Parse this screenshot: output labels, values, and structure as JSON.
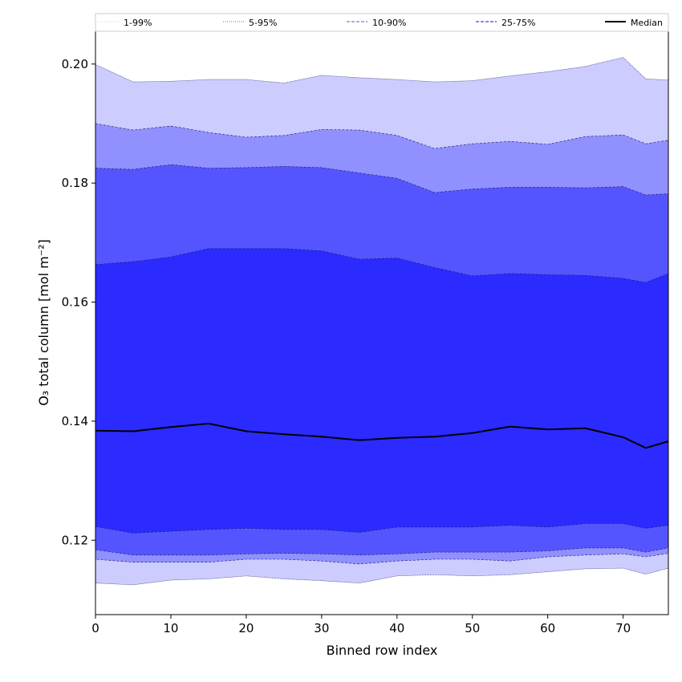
{
  "chart_data": {
    "type": "area",
    "xlabel": "Binned row index",
    "ylabel": "O₃ total column [mol m⁻²]",
    "xlim": [
      0,
      76
    ],
    "ylim": [
      0.1075,
      0.2055
    ],
    "x_ticks": [
      0,
      10,
      20,
      30,
      40,
      50,
      60,
      70
    ],
    "y_ticks": [
      0.12,
      0.14,
      0.16,
      0.18,
      0.2
    ],
    "x_ticks_text": [
      "0",
      "10",
      "20",
      "30",
      "40",
      "50",
      "60",
      "70"
    ],
    "y_ticks_text": [
      "0.12",
      "0.14",
      "0.16",
      "0.18",
      "0.20"
    ],
    "grid": false,
    "legend_placement": "top",
    "x": [
      0,
      5,
      10,
      15,
      20,
      25,
      30,
      35,
      40,
      45,
      50,
      55,
      60,
      65,
      70,
      73,
      76
    ],
    "bands": [
      {
        "name": "1-99%",
        "color": "#ffffff",
        "lower": [
          0.108,
          0.108,
          0.108,
          0.108,
          0.108,
          0.108,
          0.108,
          0.108,
          0.108,
          0.108,
          0.108,
          0.108,
          0.108,
          0.108,
          0.108,
          0.108,
          0.108
        ],
        "upper": [
          0.205,
          0.205,
          0.205,
          0.205,
          0.205,
          0.205,
          0.205,
          0.205,
          0.205,
          0.205,
          0.205,
          0.205,
          0.205,
          0.205,
          0.205,
          0.205,
          0.205
        ]
      },
      {
        "name": "5-95%",
        "color": "#ccccff",
        "lower": [
          0.1128,
          0.1125,
          0.1133,
          0.1135,
          0.114,
          0.1135,
          0.1132,
          0.1128,
          0.114,
          0.1142,
          0.114,
          0.1142,
          0.1147,
          0.1152,
          0.1153,
          0.1143,
          0.1153
        ],
        "upper": [
          0.1999,
          0.197,
          0.1971,
          0.1974,
          0.1974,
          0.1968,
          0.1981,
          0.1977,
          0.1974,
          0.197,
          0.1972,
          0.198,
          0.1987,
          0.1996,
          0.2011,
          0.1975,
          0.1973
        ]
      },
      {
        "name": "10-90%",
        "color": "#9090ff",
        "lower": [
          0.1168,
          0.1163,
          0.1163,
          0.1163,
          0.1168,
          0.1168,
          0.1165,
          0.116,
          0.1165,
          0.1168,
          0.1168,
          0.1165,
          0.1172,
          0.1175,
          0.1177,
          0.1172,
          0.1178
        ],
        "upper": [
          0.19,
          0.1889,
          0.1896,
          0.1885,
          0.1877,
          0.188,
          0.189,
          0.1889,
          0.188,
          0.1858,
          0.1866,
          0.187,
          0.1865,
          0.1878,
          0.1881,
          0.1866,
          0.1872
        ]
      },
      {
        "name": "25-75%",
        "color": "#5555ff",
        "lower": [
          0.1184,
          0.1175,
          0.1175,
          0.1175,
          0.1177,
          0.1178,
          0.1177,
          0.1175,
          0.1177,
          0.118,
          0.118,
          0.118,
          0.1182,
          0.1187,
          0.1187,
          0.118,
          0.1187
        ],
        "upper": [
          0.1825,
          0.1823,
          0.1831,
          0.1825,
          0.1826,
          0.1828,
          0.1826,
          0.1817,
          0.1808,
          0.1784,
          0.179,
          0.1793,
          0.1793,
          0.1792,
          0.1794,
          0.178,
          0.1782
        ]
      },
      {
        "name": "",
        "color": "#2b2bff",
        "lower": [
          0.1223,
          0.1212,
          0.1215,
          0.1218,
          0.122,
          0.1218,
          0.1218,
          0.1213,
          0.1222,
          0.1222,
          0.1222,
          0.1225,
          0.1222,
          0.1228,
          0.1228,
          0.122,
          0.1225
        ],
        "upper": [
          0.1663,
          0.1668,
          0.1676,
          0.169,
          0.169,
          0.169,
          0.1686,
          0.1672,
          0.1674,
          0.1658,
          0.1644,
          0.1648,
          0.1646,
          0.1645,
          0.164,
          0.1633,
          0.1648
        ]
      }
    ],
    "series": [
      {
        "name": "Median",
        "color": "#000000",
        "values": [
          0.1384,
          0.1383,
          0.139,
          0.1396,
          0.1383,
          0.1378,
          0.1374,
          0.1368,
          0.1372,
          0.1374,
          0.138,
          0.1391,
          0.1386,
          0.1388,
          0.1373,
          0.1355,
          0.1366
        ]
      }
    ],
    "legend": [
      {
        "label": "1-99%",
        "color": "#dddddd",
        "style": "dotted"
      },
      {
        "label": "5-95%",
        "color": "#8888cc",
        "style": "dotted"
      },
      {
        "label": "10-90%",
        "color": "#7777ee",
        "style": "dashed"
      },
      {
        "label": "25-75%",
        "color": "#4444dd",
        "style": "dashed"
      },
      {
        "label": "Median",
        "color": "#000000",
        "style": "solid"
      }
    ]
  }
}
